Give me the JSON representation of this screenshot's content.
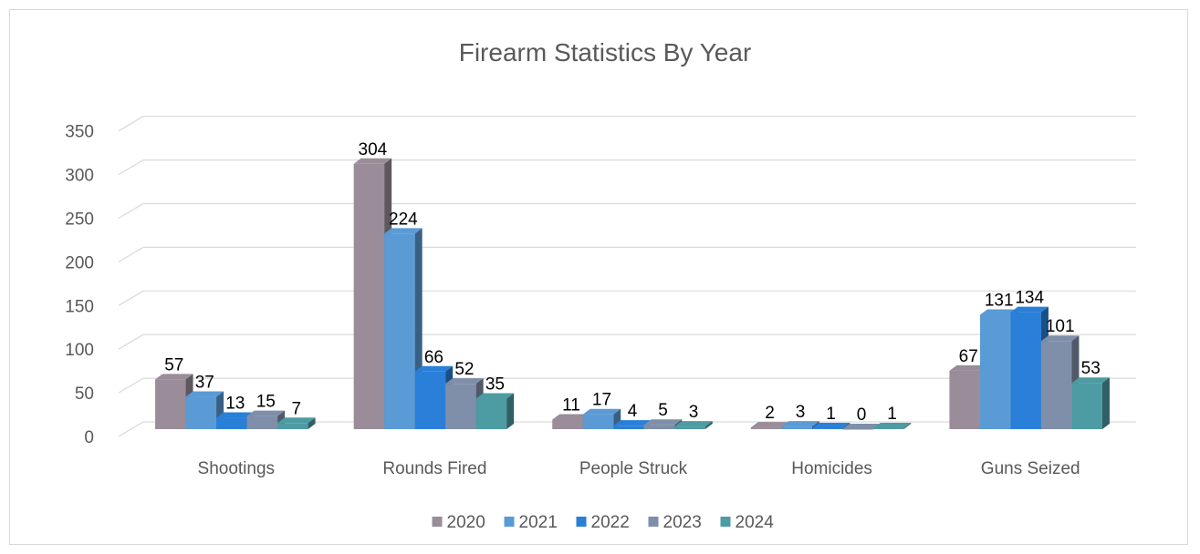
{
  "chart_data": {
    "type": "bar",
    "title": "Firearm Statistics By Year",
    "categories": [
      "Shootings",
      "Rounds Fired",
      "People Struck",
      "Homicides",
      "Guns Seized"
    ],
    "series": [
      {
        "name": "2020",
        "color": "#9a8c98",
        "values": [
          57,
          304,
          11,
          2,
          67
        ]
      },
      {
        "name": "2021",
        "color": "#5b9bd5",
        "values": [
          37,
          224,
          17,
          3,
          131
        ]
      },
      {
        "name": "2022",
        "color": "#2a7fd8",
        "values": [
          13,
          66,
          4,
          1,
          134
        ]
      },
      {
        "name": "2023",
        "color": "#7f8fa9",
        "values": [
          15,
          52,
          5,
          0,
          101
        ]
      },
      {
        "name": "2024",
        "color": "#4d9ba3",
        "values": [
          7,
          35,
          3,
          1,
          53
        ]
      }
    ],
    "yticks": [
      "0",
      "50",
      "100",
      "150",
      "200",
      "250",
      "300",
      "350"
    ],
    "ylim": [
      0,
      350
    ],
    "grid": true,
    "legend_position": "bottom",
    "style": "3d-clustered-column"
  }
}
